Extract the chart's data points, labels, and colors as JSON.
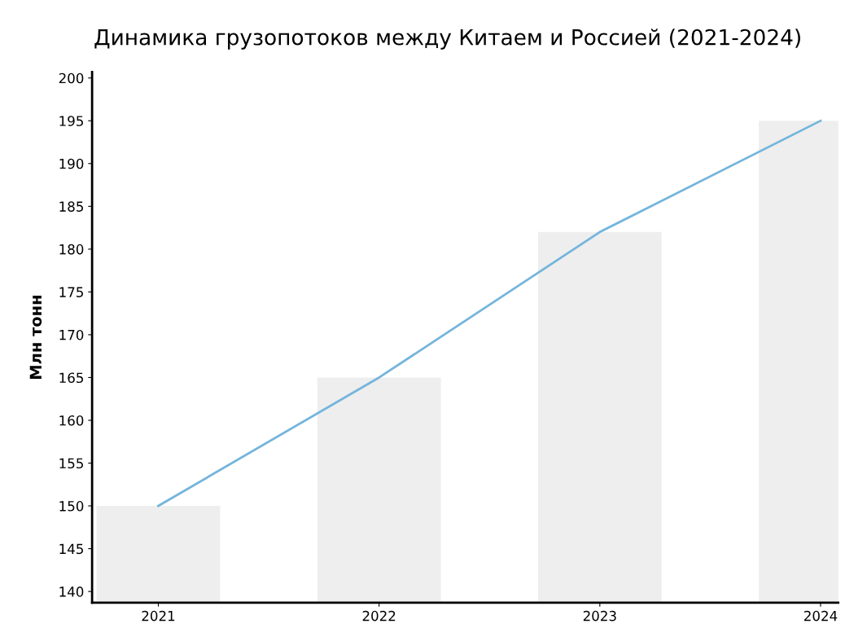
{
  "chart_data": {
    "type": "bar",
    "title": "Динамика грузопотоков между Китаем и Россией (2021-2024)",
    "ylabel": "Млн тонн",
    "categories": [
      "2021",
      "2022",
      "2023",
      "2024"
    ],
    "series": [
      {
        "color": "#eeeeee",
        "values": [
          150,
          165,
          182,
          195
        ]
      },
      {
        "type": "line",
        "color": "#74b5dc",
        "values": [
          150,
          165,
          182,
          195
        ]
      }
    ],
    "ylim": [
      138.7,
      200.7
    ],
    "yticks": [
      140,
      145,
      150,
      155,
      160,
      165,
      170,
      175,
      180,
      185,
      190,
      195,
      200
    ],
    "grid": false,
    "legend": false,
    "marker": "none",
    "line_style": "solid"
  }
}
